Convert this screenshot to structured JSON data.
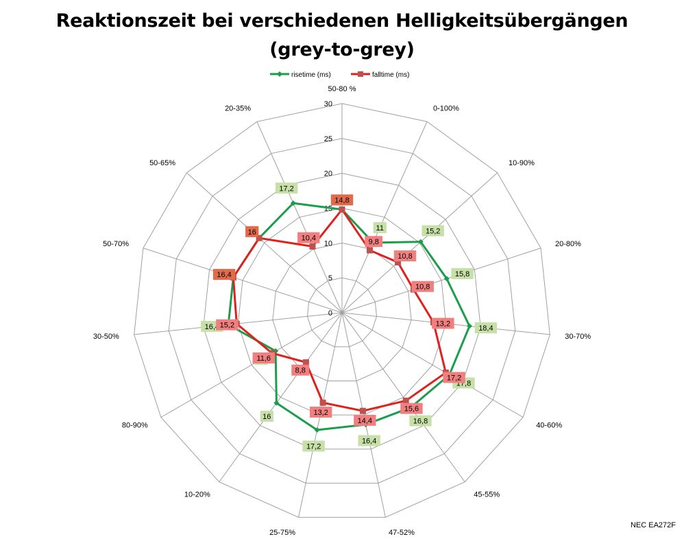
{
  "chart_data": {
    "type": "radar",
    "title_line1": "Reaktionszeit bei verschiedenen Helligkeitsübergängen",
    "title_line2": "(grey-to-grey)",
    "categories": [
      "50-80 %",
      "0-100%",
      "10-90%",
      "20-80%",
      "30-70%",
      "40-60%",
      "45-55%",
      "47-52%",
      "25-75%",
      "10-20%",
      "80-90%",
      "30-50%",
      "50-70%",
      "50-65%",
      "20-35%"
    ],
    "r_ticks": [
      "0",
      "5",
      "10",
      "15",
      "20",
      "25",
      "30"
    ],
    "r_range": [
      0,
      30
    ],
    "series": [
      {
        "name": "risetime (ms)",
        "color": "#1a9e4a",
        "label_bg": "#c6e0a8",
        "values": [
          14.8,
          11,
          15.2,
          15.8,
          18.4,
          17.8,
          16.8,
          16.4,
          17.2,
          16,
          11,
          16.4,
          16.4,
          16,
          17.2
        ],
        "labels": [
          "",
          "11",
          "15,2",
          "15,8",
          "18,4",
          "17,8",
          "16,8",
          "16,4",
          "17,2",
          "16",
          "11",
          "16,4",
          "",
          "",
          "17,2"
        ]
      },
      {
        "name": "falltime (ms)",
        "color": "#e0201c",
        "label_bg": "#f08080",
        "values": [
          14.8,
          9.8,
          10.8,
          10.8,
          13.2,
          17.2,
          15.6,
          14.4,
          13.2,
          8.8,
          11.6,
          15.2,
          16.4,
          16,
          10.4
        ],
        "labels": [
          "14,8",
          "9,8",
          "10,8",
          "10,8",
          "13,2",
          "17,2",
          "15,6",
          "14,4",
          "13,2",
          "8,8",
          "11,6",
          "15,2",
          "16,4",
          "16",
          "10,4"
        ]
      }
    ],
    "legend_position": "top",
    "grid": true
  },
  "footer_note": "NEC EA272F"
}
